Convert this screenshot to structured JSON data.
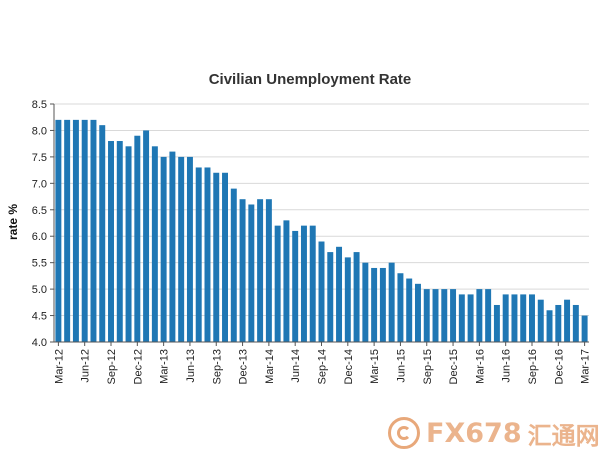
{
  "chart_data": {
    "type": "bar",
    "title": "Civilian Unemployment Rate",
    "xlabel": "",
    "ylabel": "rate %",
    "ylim": [
      4.0,
      8.5
    ],
    "yticks": [
      "4.0",
      "4.5",
      "5.0",
      "5.5",
      "6.0",
      "6.5",
      "7.0",
      "7.5",
      "8.0",
      "8.5"
    ],
    "grid": true,
    "legend": "none",
    "bar_color": "#1f77b4",
    "categories": [
      "Mar-12",
      "Apr-12",
      "May-12",
      "Jun-12",
      "Jul-12",
      "Aug-12",
      "Sep-12",
      "Oct-12",
      "Nov-12",
      "Dec-12",
      "Jan-13",
      "Feb-13",
      "Mar-13",
      "Apr-13",
      "May-13",
      "Jun-13",
      "Jul-13",
      "Aug-13",
      "Sep-13",
      "Oct-13",
      "Nov-13",
      "Dec-13",
      "Jan-14",
      "Feb-14",
      "Mar-14",
      "Apr-14",
      "May-14",
      "Jun-14",
      "Jul-14",
      "Aug-14",
      "Sep-14",
      "Oct-14",
      "Nov-14",
      "Dec-14",
      "Jan-15",
      "Feb-15",
      "Mar-15",
      "Apr-15",
      "May-15",
      "Jun-15",
      "Jul-15",
      "Aug-15",
      "Sep-15",
      "Oct-15",
      "Nov-15",
      "Dec-15",
      "Jan-16",
      "Feb-16",
      "Mar-16",
      "Apr-16",
      "May-16",
      "Jun-16",
      "Jul-16",
      "Aug-16",
      "Sep-16",
      "Oct-16",
      "Nov-16",
      "Dec-16",
      "Jan-17",
      "Feb-17",
      "Mar-17"
    ],
    "tick_labels": [
      {
        "index": 0,
        "label": "Mar-12"
      },
      {
        "index": 3,
        "label": "Jun-12"
      },
      {
        "index": 6,
        "label": "Sep-12"
      },
      {
        "index": 9,
        "label": "Dec-12"
      },
      {
        "index": 12,
        "label": "Mar-13"
      },
      {
        "index": 15,
        "label": "Jun-13"
      },
      {
        "index": 18,
        "label": "Sep-13"
      },
      {
        "index": 21,
        "label": "Dec-13"
      },
      {
        "index": 24,
        "label": "Mar-14"
      },
      {
        "index": 27,
        "label": "Jun-14"
      },
      {
        "index": 30,
        "label": "Sep-14"
      },
      {
        "index": 33,
        "label": "Dec-14"
      },
      {
        "index": 36,
        "label": "Mar-15"
      },
      {
        "index": 39,
        "label": "Jun-15"
      },
      {
        "index": 42,
        "label": "Sep-15"
      },
      {
        "index": 45,
        "label": "Dec-15"
      },
      {
        "index": 48,
        "label": "Mar-16"
      },
      {
        "index": 51,
        "label": "Jun-16"
      },
      {
        "index": 54,
        "label": "Sep-16"
      },
      {
        "index": 57,
        "label": "Dec-16"
      },
      {
        "index": 60,
        "label": "Mar-17"
      }
    ],
    "values": [
      8.2,
      8.2,
      8.2,
      8.2,
      8.2,
      8.1,
      7.8,
      7.8,
      7.7,
      7.9,
      8.0,
      7.7,
      7.5,
      7.6,
      7.5,
      7.5,
      7.3,
      7.3,
      7.2,
      7.2,
      6.9,
      6.7,
      6.6,
      6.7,
      6.7,
      6.2,
      6.3,
      6.1,
      6.2,
      6.2,
      5.9,
      5.7,
      5.8,
      5.6,
      5.7,
      5.5,
      5.4,
      5.4,
      5.5,
      5.3,
      5.2,
      5.1,
      5.0,
      5.0,
      5.0,
      5.0,
      4.9,
      4.9,
      5.0,
      5.0,
      4.7,
      4.9,
      4.9,
      4.9,
      4.9,
      4.8,
      4.6,
      4.7,
      4.8,
      4.7,
      4.5
    ]
  },
  "watermark": {
    "text": "FX678",
    "cn_text": "汇通网"
  }
}
